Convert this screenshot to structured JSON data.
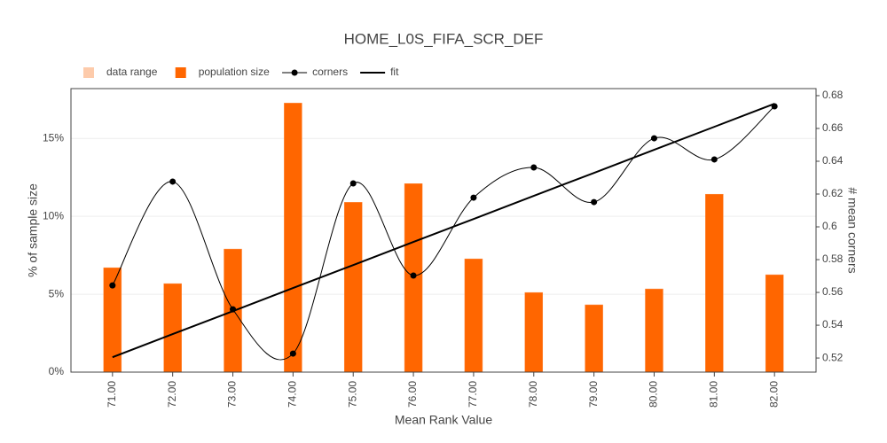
{
  "chart_data": {
    "type": "bar",
    "title": "HOME_L0S_FIFA_SCR_DEF",
    "x_label": "Mean Rank Value",
    "y_label": "% of sample size",
    "y2_label": "# mean corners",
    "x": [
      71,
      72,
      73,
      74,
      75,
      76,
      77,
      78,
      79,
      80,
      81,
      82
    ],
    "xlim": [
      70.31,
      82.69
    ],
    "xticks": [
      {
        "value": 71,
        "label": "71.00"
      },
      {
        "value": 72,
        "label": "72.00"
      },
      {
        "value": 73,
        "label": "73.00"
      },
      {
        "value": 74,
        "label": "74.00"
      },
      {
        "value": 75,
        "label": "75.00"
      },
      {
        "value": 76,
        "label": "76.00"
      },
      {
        "value": 77,
        "label": "77.00"
      },
      {
        "value": 78,
        "label": "78.00"
      },
      {
        "value": 79,
        "label": "79.00"
      },
      {
        "value": 80,
        "label": "80.00"
      },
      {
        "value": 81,
        "label": "81.00"
      },
      {
        "value": 82,
        "label": "82.00"
      }
    ],
    "ylim": [
      0,
      18.2
    ],
    "yticks": [
      {
        "value": 0,
        "label": "0%"
      },
      {
        "value": 5,
        "label": "5%"
      },
      {
        "value": 10,
        "label": "10%"
      },
      {
        "value": 15,
        "label": "15%"
      }
    ],
    "y2lim": [
      0.5114,
      0.6843
    ],
    "y2ticks": [
      0.52,
      0.54,
      0.56,
      0.58,
      0.6,
      0.62,
      0.64,
      0.66,
      0.68
    ],
    "grid": true,
    "legend": "top-left",
    "series": [
      {
        "name": "data range",
        "color": "#fdcbab"
      },
      {
        "name": "population size",
        "color": "#ff6600",
        "type": "bar",
        "values": [
          6.7,
          5.68,
          7.9,
          17.27,
          10.9,
          12.1,
          7.27,
          5.11,
          4.32,
          5.34,
          11.42,
          6.25
        ]
      },
      {
        "name": "corners",
        "color": "#000000",
        "type": "spline",
        "axis": "y2",
        "values": [
          0.5643,
          0.6276,
          0.5497,
          0.5227,
          0.6265,
          0.5703,
          0.6178,
          0.6362,
          0.6151,
          0.654,
          0.6411,
          0.6735
        ]
      },
      {
        "name": "fit",
        "color": "#000000",
        "type": "line",
        "axis": "y2",
        "values": [
          0.5205,
          0.5346,
          0.5486,
          0.5627,
          0.5767,
          0.5908,
          0.6048,
          0.6189,
          0.6329,
          0.647,
          0.661,
          0.6751
        ]
      }
    ]
  }
}
